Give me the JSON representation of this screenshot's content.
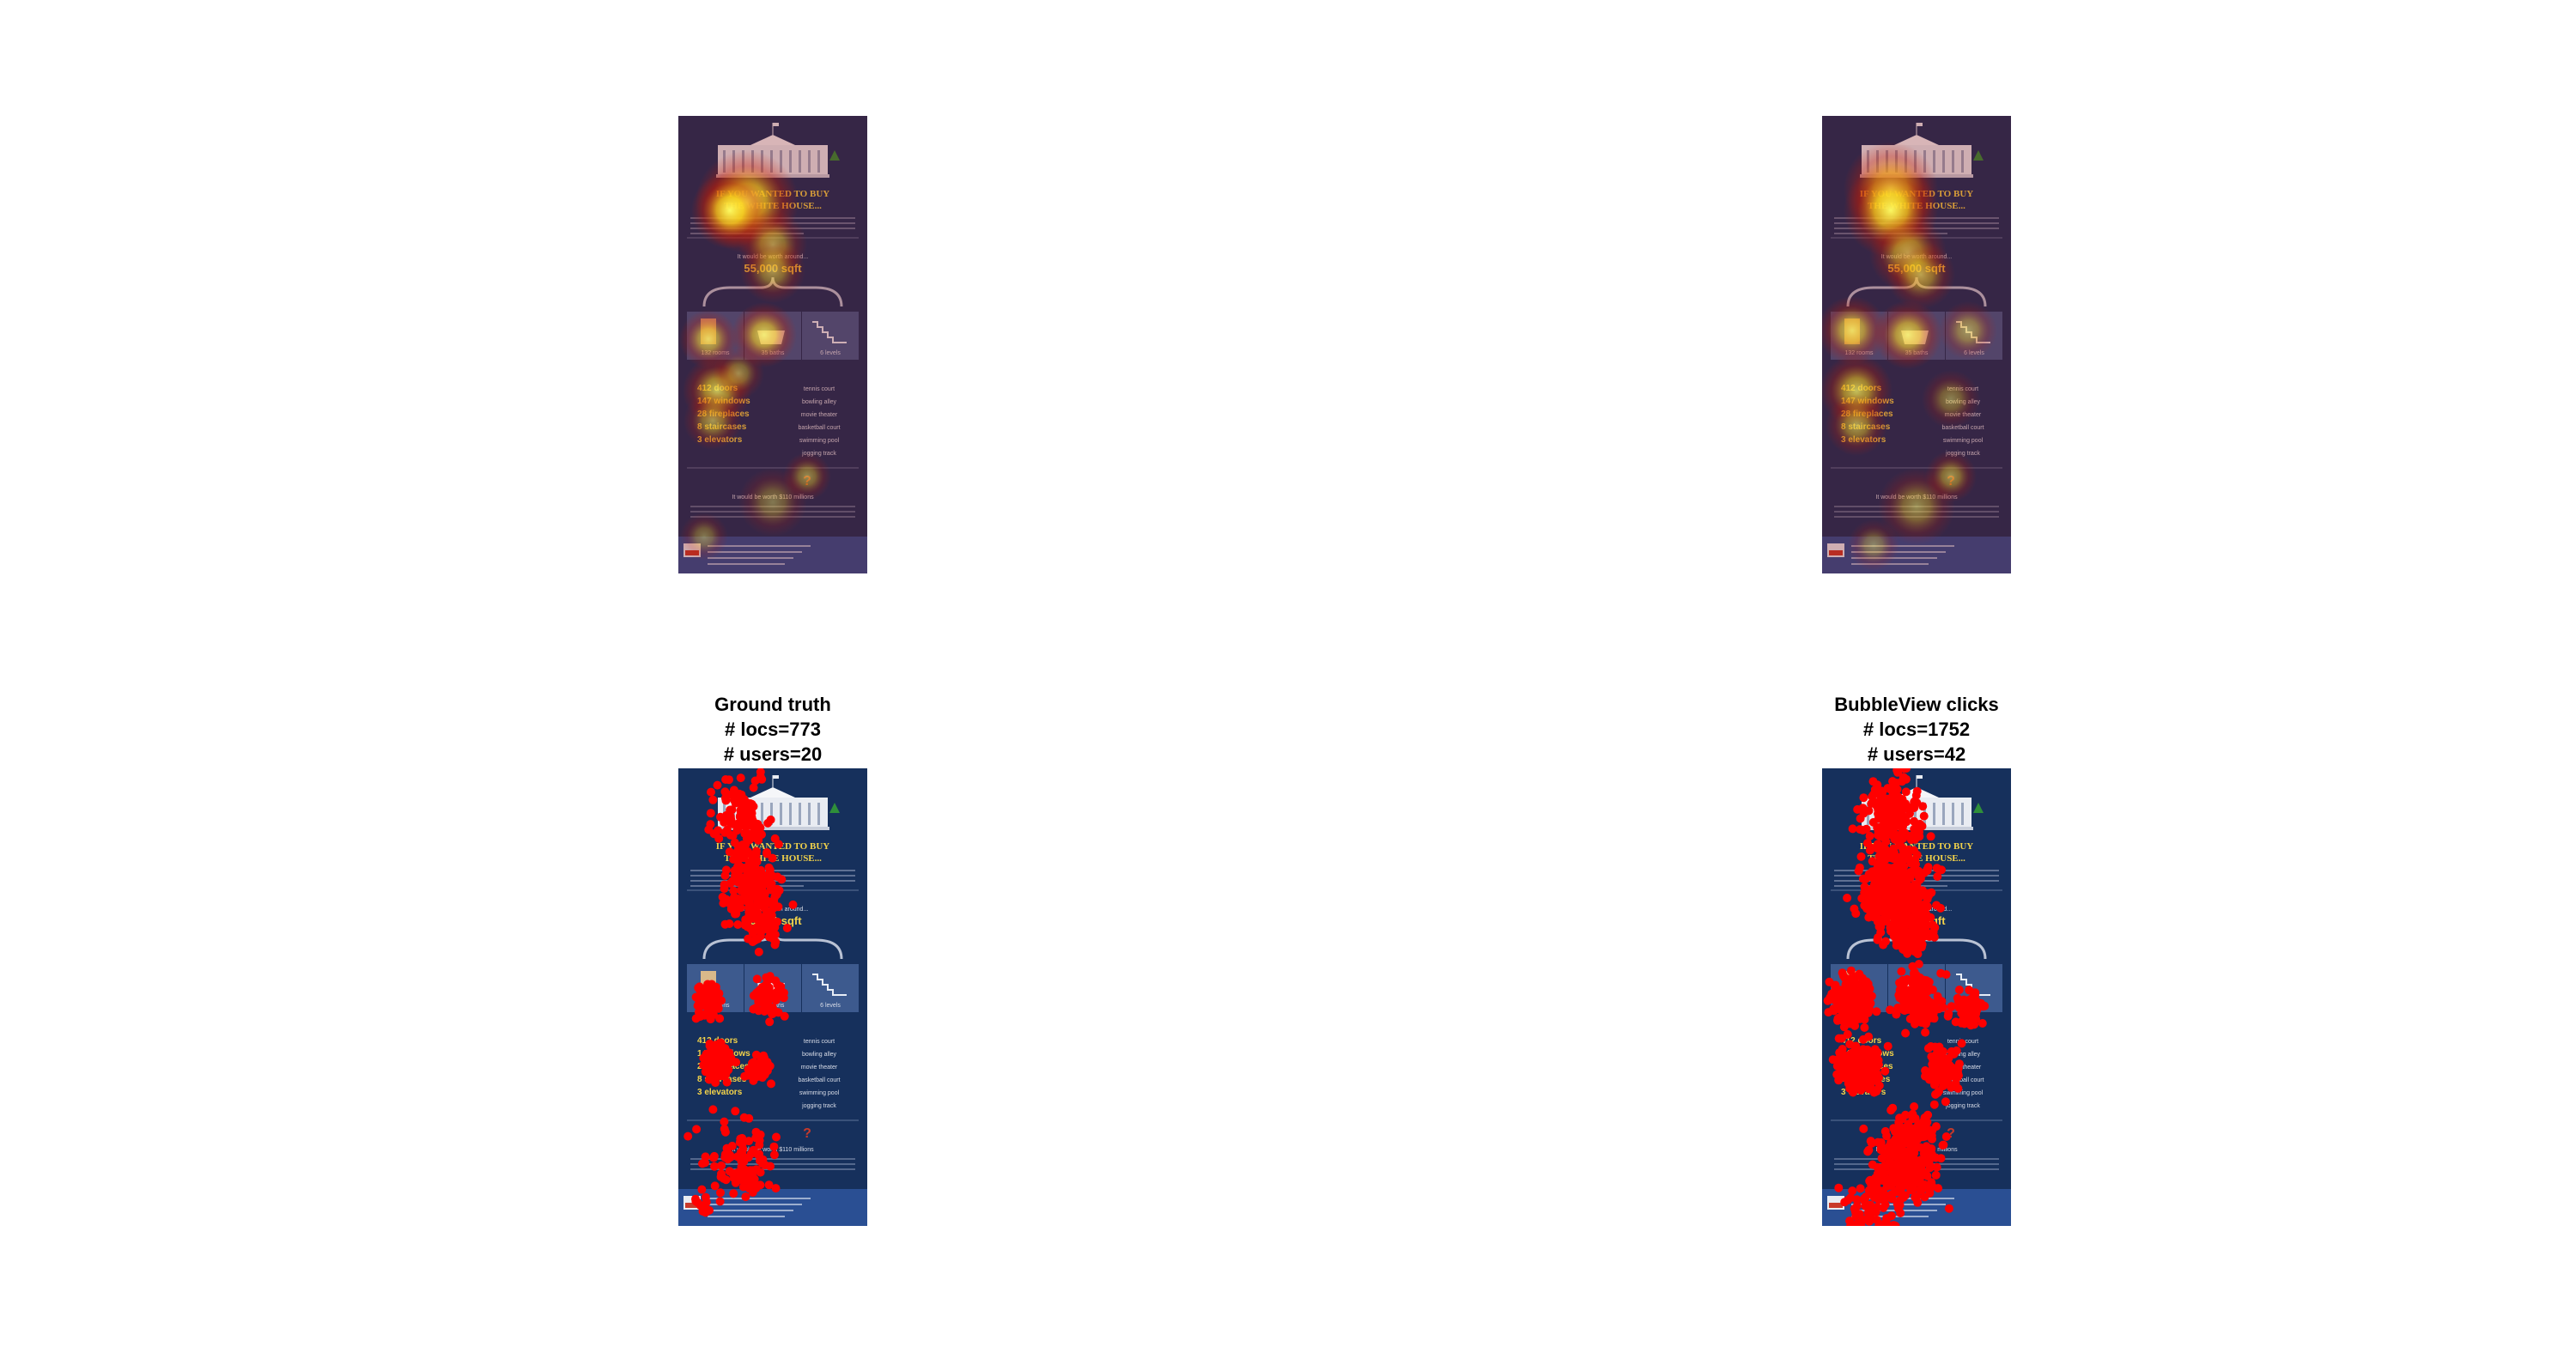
{
  "figures": {
    "ground_truth": {
      "title": "Ground truth",
      "locs_line": "# locs=773",
      "users_line": "# users=20",
      "locs": 773,
      "users": 20
    },
    "bubbleview": {
      "title": "BubbleView clicks",
      "locs_line": "# locs=1752",
      "users_line": "# users=42",
      "locs": 1752,
      "users": 42
    }
  },
  "infographic": {
    "headline_1": "IF YOU WANTED TO BUY",
    "headline_2": "THE WHITE HOUSE...",
    "area_label": "It would be worth around...",
    "area_value": "55,000 sqft",
    "tile_rooms": "132 rooms",
    "tile_baths": "35 baths",
    "tile_levels": "6 levels",
    "stat_1": "412 doors",
    "stat_2": "147 windows",
    "stat_3": "28 fireplaces",
    "stat_4": "8 staircases",
    "stat_5": "3 elevators",
    "amenity_1": "tennis court",
    "amenity_2": "bowling alley",
    "amenity_3": "movie theater",
    "amenity_4": "basketball court",
    "amenity_5": "swimming pool",
    "amenity_6": "jogging track",
    "price_line": "It would be worth $110 millions",
    "question_mark": "?"
  },
  "colors": {
    "infographic_background": "#16305c",
    "heat_core": "#ffff66",
    "heat_outer": "#cc1a00",
    "click_dot": "#ff0000",
    "tile": "#3d5a8e"
  }
}
